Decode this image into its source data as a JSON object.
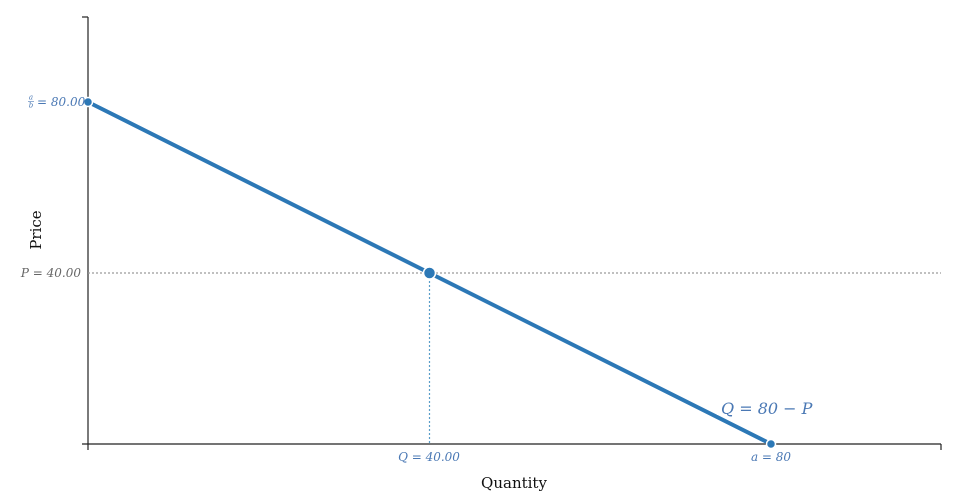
{
  "chart_data": {
    "type": "line",
    "xlabel": "Quantity",
    "ylabel": "Price",
    "xlim": [
      0,
      100
    ],
    "ylim": [
      0,
      100
    ],
    "series": [
      {
        "name": "Q = 80 − P",
        "x": [
          0,
          80
        ],
        "y": [
          80,
          0
        ]
      }
    ],
    "equilibrium": {
      "x": 40,
      "y": 40
    },
    "annotations": {
      "x_tick_eq": "Q = 40.00",
      "x_tick_a": "a = 80",
      "y_tick_intercept": "a/b = 80.00",
      "y_tick_eq": "P = 40.00",
      "curve_label": "Q = 80 − P"
    },
    "grid": false,
    "colors": {
      "line": "#2c78b6",
      "x_guide": "#5b9ec8",
      "y_guide": "#9a9a9a",
      "tick_text": "#4a78b4",
      "y_eq_text": "#666666"
    }
  }
}
